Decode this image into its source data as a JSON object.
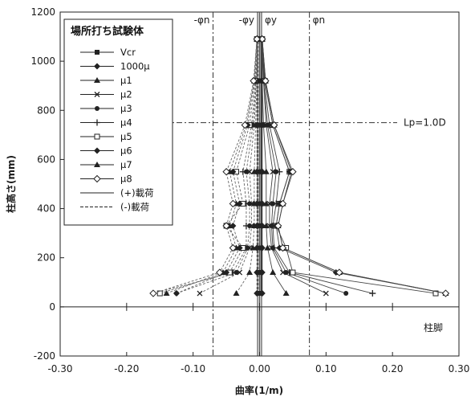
{
  "chart_data": {
    "type": "line",
    "title": "",
    "xlabel": "曲率(1/m)",
    "ylabel": "柱高さ(mm)",
    "xlim": [
      -0.3,
      0.3
    ],
    "ylim": [
      -200,
      1200
    ],
    "x_ticks": [
      -0.3,
      -0.2,
      -0.1,
      0.0,
      0.1,
      0.2,
      0.3
    ],
    "x_tick_labels": [
      "-0.30",
      "-0.20",
      "-0.10",
      "0.00",
      "0.10",
      "0.20",
      "0.30"
    ],
    "y_ticks": [
      -200,
      0,
      200,
      400,
      600,
      800,
      1000,
      1200
    ],
    "y_tick_labels": [
      "-200",
      "0",
      "200",
      "400",
      "600",
      "800",
      "1000",
      "1200"
    ],
    "grid": false,
    "legend_title": "場所打ち試験体",
    "legend_position": "top-left",
    "heights": [
      55,
      140,
      240,
      330,
      420,
      550,
      740,
      920,
      1090
    ],
    "series": [
      {
        "name": "Vcr",
        "marker": "square-filled",
        "positive": [
          0.002,
          0.002,
          0.002,
          0.002,
          0.002,
          0.002,
          0.002,
          0.002,
          0.002
        ],
        "negative": [
          -0.002,
          -0.002,
          -0.002,
          -0.002,
          -0.002,
          -0.002,
          -0.002,
          -0.002,
          -0.002
        ]
      },
      {
        "name": "1000μ",
        "marker": "diamond-filled",
        "positive": [
          0.004,
          0.004,
          0.004,
          0.004,
          0.004,
          0.004,
          0.004,
          0.004,
          0.004
        ],
        "negative": [
          -0.004,
          -0.004,
          -0.004,
          -0.004,
          -0.004,
          -0.004,
          -0.004,
          -0.004,
          -0.004
        ]
      },
      {
        "name": "μ1",
        "marker": "triangle-filled",
        "positive": [
          0.04,
          0.02,
          0.012,
          0.01,
          0.01,
          0.01,
          0.006,
          0.004,
          0.002
        ],
        "negative": [
          -0.035,
          -0.015,
          -0.01,
          -0.008,
          -0.008,
          -0.008,
          -0.006,
          -0.004,
          -0.002
        ]
      },
      {
        "name": "μ2",
        "marker": "x",
        "positive": [
          0.1,
          0.035,
          0.018,
          0.015,
          0.015,
          0.02,
          0.01,
          0.006,
          0.003
        ],
        "negative": [
          -0.09,
          -0.03,
          -0.015,
          -0.012,
          -0.012,
          -0.015,
          -0.008,
          -0.005,
          -0.003
        ]
      },
      {
        "name": "μ3",
        "marker": "circle-filled",
        "positive": [
          0.13,
          0.04,
          0.02,
          0.018,
          0.02,
          0.025,
          0.012,
          0.006,
          0.003
        ],
        "negative": [
          -0.125,
          -0.035,
          -0.018,
          -0.015,
          -0.015,
          -0.02,
          -0.01,
          -0.005,
          -0.003
        ]
      },
      {
        "name": "μ4",
        "marker": "plus",
        "positive": [
          0.17,
          0.045,
          0.022,
          0.02,
          0.025,
          0.03,
          0.015,
          0.007,
          0.003
        ],
        "negative": [
          -0.16,
          -0.04,
          -0.02,
          -0.02,
          -0.02,
          -0.025,
          -0.012,
          -0.006,
          -0.003
        ]
      },
      {
        "name": "μ5",
        "marker": "square-open",
        "positive": [
          0.265,
          0.05,
          0.04,
          0.025,
          0.03,
          0.045,
          0.02,
          0.008,
          0.004
        ],
        "negative": [
          -0.15,
          -0.045,
          -0.025,
          -0.05,
          -0.025,
          -0.035,
          -0.015,
          -0.007,
          -0.004
        ]
      },
      {
        "name": "μ6",
        "marker": "diamond-filled",
        "positive": [
          0.28,
          0.115,
          0.03,
          0.025,
          0.03,
          0.045,
          0.02,
          0.008,
          0.004
        ],
        "negative": [
          -0.125,
          -0.05,
          -0.03,
          -0.04,
          -0.03,
          -0.04,
          -0.018,
          -0.008,
          -0.004
        ]
      },
      {
        "name": "μ7",
        "marker": "triangle-filled",
        "positive": [
          0.28,
          0.12,
          0.035,
          0.028,
          0.035,
          0.048,
          0.022,
          0.009,
          0.004
        ],
        "negative": [
          -0.14,
          -0.055,
          -0.035,
          -0.045,
          -0.035,
          -0.045,
          -0.02,
          -0.008,
          -0.004
        ]
      },
      {
        "name": "μ8",
        "marker": "diamond-open",
        "positive": [
          0.28,
          0.12,
          0.035,
          0.028,
          0.035,
          0.05,
          0.022,
          0.009,
          0.004
        ],
        "negative": [
          -0.16,
          -0.06,
          -0.04,
          -0.05,
          -0.04,
          -0.05,
          -0.022,
          -0.009,
          -0.004
        ]
      }
    ],
    "legend_extra": [
      {
        "name": "(+)載荷",
        "style": "solid"
      },
      {
        "name": "(-)載荷",
        "style": "dashed"
      }
    ],
    "reference_lines": {
      "vertical": [
        {
          "label": "-φn",
          "x": -0.07
        },
        {
          "label": "-φy",
          "x": -0.003
        },
        {
          "label": "φy",
          "x": 0.003
        },
        {
          "label": "φn",
          "x": 0.075
        }
      ],
      "horizontal": [
        {
          "label": "Lp=1.0D",
          "y": 750
        }
      ]
    },
    "annotations": {
      "base_label": "柱脚"
    }
  }
}
